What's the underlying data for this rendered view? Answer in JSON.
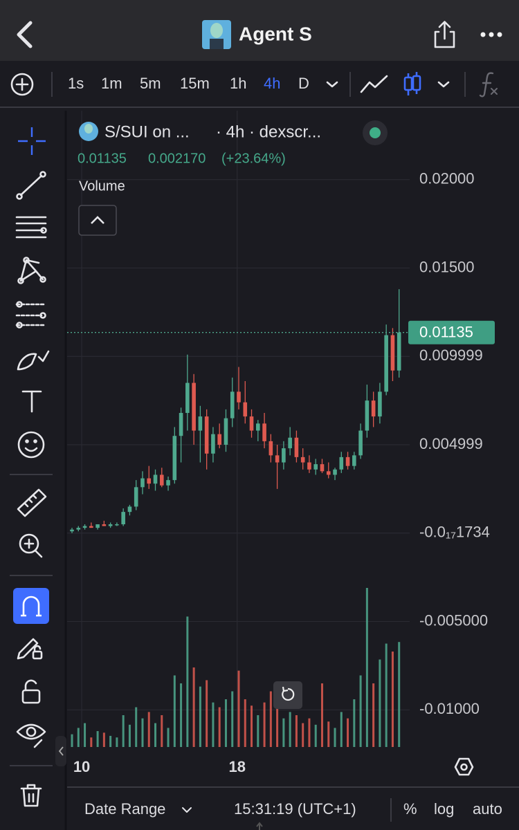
{
  "header": {
    "title": "Agent S"
  },
  "toolbar": {
    "intervals": [
      "1s",
      "1m",
      "5m",
      "15m",
      "1h",
      "4h",
      "D"
    ]
  },
  "chart": {
    "type": "candlestick",
    "symbol": "S/SUI on ...",
    "source": "· 4h · dexscr...",
    "legend": {
      "close": 0.01135,
      "change": "0.002170",
      "change_pct": "(+23.64%)"
    },
    "volume_label": "Volume",
    "last_price": 0.01135,
    "up_color": "#4fa98e",
    "down_color": "#df5a50",
    "ylim": [
      -0.0121,
      0.0239
    ],
    "yticks": [
      {
        "value": 0.02,
        "label": "0.02000"
      },
      {
        "value": 0.015,
        "label": "0.01500"
      },
      0.009999,
      0.004999,
      {
        "value": -1.734e-20,
        "label": "-0.0₁₇1734"
      },
      {
        "value": -0.005,
        "label": "-0.005000"
      },
      {
        "value": -0.01,
        "label": "-0.01000"
      }
    ],
    "xlim": [
      9.25,
      32.5
    ],
    "xticks": [
      10,
      18
    ],
    "x": [
      9.5,
      9.83,
      10.16,
      10.49,
      10.82,
      11.15,
      11.48,
      11.81,
      12.14,
      12.47,
      12.8,
      13.13,
      13.46,
      13.79,
      14.12,
      14.45,
      14.78,
      15.11,
      15.44,
      15.77,
      16.1,
      16.43,
      16.76,
      17.09,
      17.42,
      17.75,
      18.08,
      18.41,
      18.74,
      19.07,
      19.4,
      19.73,
      20.06,
      20.39,
      20.72,
      21.05,
      21.38,
      21.71,
      22.04,
      22.37,
      22.7,
      23.03,
      23.36,
      23.69,
      24.02,
      24.35,
      24.68,
      25.01,
      25.34,
      25.67,
      26.0,
      26.33
    ],
    "open": [
      0.0001,
      0.0002,
      0.0003,
      0.0004,
      0.0003,
      0.0005,
      0.0004,
      0.0005,
      0.0005,
      0.0012,
      0.0015,
      0.0026,
      0.0031,
      0.0028,
      0.0033,
      0.0027,
      0.003,
      0.0055,
      0.0068,
      0.0085,
      0.0058,
      0.0066,
      0.0045,
      0.0056,
      0.005,
      0.0065,
      0.008,
      0.0074,
      0.0066,
      0.0058,
      0.0062,
      0.0052,
      0.0044,
      0.004,
      0.0048,
      0.0054,
      0.0043,
      0.004,
      0.0036,
      0.0039,
      0.0035,
      0.0033,
      0.0036,
      0.0043,
      0.0038,
      0.0044,
      0.0058,
      0.0075,
      0.0066,
      0.008,
      0.0112,
      0.0092
    ],
    "high": [
      0.0003,
      0.0004,
      0.0005,
      0.0006,
      0.0005,
      0.0007,
      0.0006,
      0.0006,
      0.0014,
      0.0016,
      0.003,
      0.0035,
      0.0038,
      0.0036,
      0.0037,
      0.0032,
      0.006,
      0.0071,
      0.0101,
      0.009,
      0.0072,
      0.007,
      0.006,
      0.0062,
      0.007,
      0.0088,
      0.0094,
      0.0086,
      0.007,
      0.0064,
      0.0068,
      0.0056,
      0.005,
      0.0052,
      0.006,
      0.0058,
      0.0048,
      0.0044,
      0.0042,
      0.0042,
      0.004,
      0.0037,
      0.0046,
      0.0046,
      0.0046,
      0.0062,
      0.0084,
      0.008,
      0.0085,
      0.0118,
      0.0116,
      0.0138
    ],
    "low": [
      0.0,
      0.0001,
      0.0002,
      0.0003,
      0.0002,
      0.0004,
      0.0003,
      0.0004,
      0.0004,
      0.001,
      0.0013,
      0.0022,
      0.0025,
      0.0024,
      0.0026,
      0.0024,
      0.0028,
      0.004,
      0.0058,
      0.005,
      0.004,
      0.0036,
      0.004,
      0.0048,
      0.0046,
      0.006,
      0.007,
      0.0062,
      0.0054,
      0.0052,
      0.0048,
      0.004,
      0.0025,
      0.0036,
      0.0044,
      0.004,
      0.0036,
      0.0034,
      0.0033,
      0.0034,
      0.0031,
      0.003,
      0.0034,
      0.0036,
      0.0036,
      0.0042,
      0.0054,
      0.006,
      0.0062,
      0.0078,
      0.0086,
      0.0088
    ],
    "close": [
      0.0002,
      0.0003,
      0.0004,
      0.0003,
      0.0005,
      0.0004,
      0.0005,
      0.0005,
      0.0012,
      0.0015,
      0.0026,
      0.0031,
      0.0028,
      0.0033,
      0.0027,
      0.003,
      0.0055,
      0.0068,
      0.0085,
      0.0058,
      0.0066,
      0.0045,
      0.0056,
      0.005,
      0.0065,
      0.008,
      0.0074,
      0.0066,
      0.0058,
      0.0062,
      0.0052,
      0.0044,
      0.004,
      0.0048,
      0.0054,
      0.0043,
      0.004,
      0.0036,
      0.0039,
      0.0035,
      0.0033,
      0.0036,
      0.0043,
      0.0038,
      0.0044,
      0.0058,
      0.0075,
      0.0066,
      0.008,
      0.0112,
      0.0092,
      0.01135
    ],
    "volume": [
      8,
      12,
      15,
      6,
      10,
      9,
      7,
      6,
      20,
      14,
      25,
      18,
      22,
      15,
      20,
      12,
      45,
      40,
      82,
      50,
      38,
      42,
      28,
      25,
      30,
      35,
      48,
      30,
      26,
      20,
      28,
      35,
      30,
      18,
      22,
      20,
      15,
      18,
      14,
      40,
      16,
      12,
      22,
      18,
      30,
      45,
      100,
      40,
      55,
      65,
      60,
      66
    ]
  },
  "bottom_bar": {
    "date_range": "Date Range",
    "time": "15:31:19 (UTC+1)",
    "percent": "%",
    "log": "log",
    "auto": "auto"
  }
}
